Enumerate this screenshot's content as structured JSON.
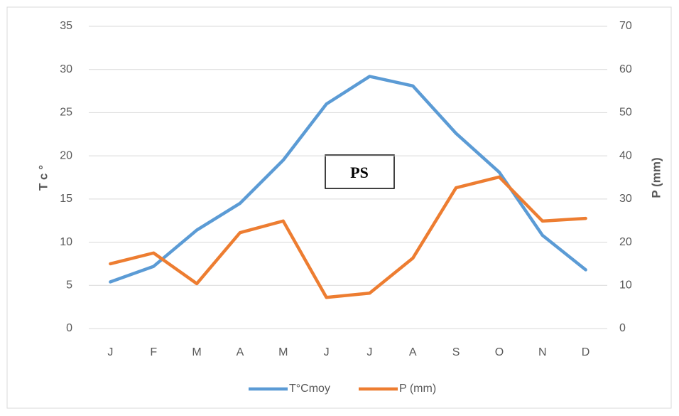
{
  "chart_data": {
    "type": "line",
    "categories": [
      "J",
      "F",
      "M",
      "A",
      "M",
      "J",
      "J",
      "A",
      "S",
      "O",
      "N",
      "D"
    ],
    "series": [
      {
        "name": "T°Cmoy",
        "color": "#5b9bd5",
        "values": [
          5.4,
          7.2,
          11.4,
          14.5,
          19.5,
          26.0,
          29.2,
          28.1,
          22.6,
          18.1,
          10.8,
          6.8
        ]
      },
      {
        "name": "P (mm)",
        "color": "#ed7d31",
        "axis": "y2",
        "values": [
          15.0,
          17.5,
          10.4,
          22.2,
          24.9,
          7.2,
          8.2,
          16.3,
          32.6,
          35.1,
          24.9,
          25.5
        ]
      }
    ],
    "ylabel": "T c °",
    "y2label": "P (mm)",
    "ylim": [
      0,
      35
    ],
    "yticks": [
      0,
      5,
      10,
      15,
      20,
      25,
      30,
      35
    ],
    "y2lim": [
      0,
      70
    ],
    "y2ticks": [
      0,
      10,
      20,
      30,
      40,
      50,
      60,
      70
    ],
    "annotation": "PS",
    "grid": true,
    "legend": "bottom"
  }
}
